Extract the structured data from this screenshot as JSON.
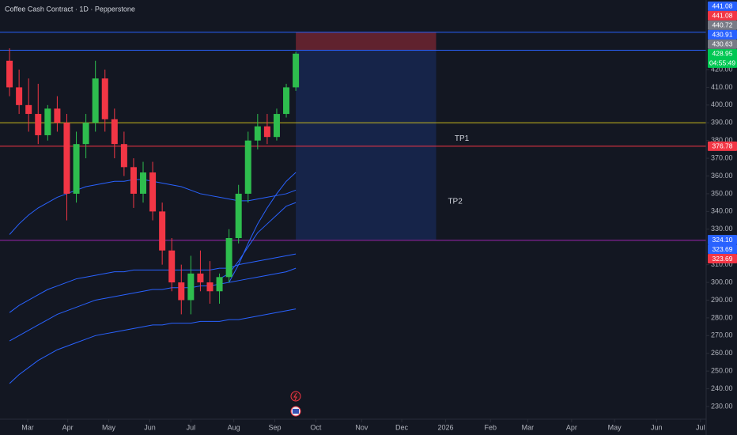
{
  "chart_data": {
    "type": "candlestick",
    "title": "Coffee Cash Contract · 1D · Pepperstone",
    "background": "#131722",
    "up_color": "#2ebd4e",
    "down_color": "#f23645",
    "grid": false,
    "x": [
      0,
      1,
      2,
      3,
      4,
      5,
      6,
      7,
      8,
      9,
      10,
      11,
      12,
      13,
      14,
      15,
      16,
      17,
      18,
      19,
      20,
      21,
      22,
      23,
      24,
      25,
      26,
      27,
      28,
      29,
      30
    ],
    "open": [
      425,
      410,
      400,
      395,
      383,
      398,
      390,
      350,
      378,
      390,
      415,
      392,
      378,
      365,
      350,
      362,
      340,
      318,
      300,
      290,
      305,
      300,
      295,
      303,
      325,
      350,
      380,
      388,
      382,
      395,
      410
    ],
    "high": [
      432,
      420,
      415,
      412,
      400,
      405,
      395,
      385,
      395,
      425,
      420,
      398,
      385,
      370,
      368,
      368,
      345,
      325,
      310,
      315,
      318,
      312,
      305,
      330,
      355,
      385,
      395,
      395,
      398,
      412,
      430
    ],
    "low": [
      405,
      395,
      385,
      378,
      380,
      385,
      335,
      345,
      370,
      385,
      385,
      370,
      360,
      342,
      345,
      335,
      310,
      295,
      282,
      282,
      295,
      288,
      288,
      300,
      322,
      345,
      375,
      378,
      380,
      393,
      408
    ],
    "close": [
      410,
      400,
      395,
      383,
      398,
      390,
      350,
      378,
      390,
      415,
      392,
      378,
      365,
      350,
      362,
      340,
      318,
      300,
      290,
      305,
      300,
      295,
      303,
      325,
      350,
      380,
      388,
      382,
      395,
      410,
      429
    ],
    "series": [
      {
        "color": "#2962ff",
        "values": [
          null,
          null,
          null,
          null,
          null,
          null,
          null,
          null,
          null,
          null,
          null,
          null,
          null,
          null,
          null,
          null,
          null,
          null,
          null,
          null,
          null,
          null,
          null,
          300,
          310,
          322,
          333,
          342,
          350,
          357,
          362
        ]
      },
      {
        "color": "#2962ff",
        "values": [
          null,
          null,
          null,
          null,
          null,
          null,
          null,
          null,
          null,
          null,
          null,
          null,
          null,
          null,
          null,
          null,
          null,
          null,
          null,
          null,
          null,
          null,
          302,
          305,
          312,
          320,
          328,
          333,
          338,
          343,
          345
        ]
      },
      {
        "color": "#2962ff",
        "values": [
          327,
          333,
          338,
          342,
          345,
          348,
          350,
          352,
          354,
          355,
          356,
          357,
          357,
          358,
          358,
          357,
          356,
          355,
          354,
          352,
          350,
          349,
          348,
          347,
          346,
          346,
          347,
          348,
          349,
          350,
          352
        ]
      },
      {
        "color": "#2962ff",
        "values": [
          283,
          287,
          290,
          293,
          296,
          298,
          300,
          302,
          303,
          304,
          305,
          306,
          306,
          307,
          307,
          307,
          307,
          307,
          307,
          307,
          307,
          307,
          308,
          308,
          310,
          311,
          312,
          313,
          314,
          315,
          316
        ]
      },
      {
        "color": "#2962ff",
        "values": [
          267,
          270,
          273,
          276,
          279,
          282,
          284,
          286,
          288,
          290,
          291,
          292,
          293,
          294,
          295,
          296,
          296,
          297,
          297,
          297,
          298,
          298,
          299,
          300,
          301,
          302,
          303,
          304,
          305,
          306,
          308
        ]
      },
      {
        "color": "#2962ff",
        "values": [
          243,
          248,
          252,
          256,
          259,
          262,
          264,
          266,
          268,
          270,
          271,
          272,
          273,
          274,
          275,
          276,
          276,
          277,
          277,
          277,
          278,
          278,
          278,
          279,
          279,
          280,
          281,
          282,
          283,
          284,
          285
        ]
      }
    ],
    "levels": [
      {
        "value": 441.08,
        "color": "#2962ff"
      },
      {
        "value": 430.91,
        "color": "#2962ff"
      },
      {
        "value": 390,
        "color": "#c9b91d"
      },
      {
        "value": 376.78,
        "color": "#f23645"
      },
      {
        "value": 323.69,
        "color": "#9c27b0"
      }
    ],
    "position": {
      "entry": 430.63,
      "stop": 441.08,
      "target": 324.1,
      "x": [
        30,
        44.7
      ]
    },
    "annotations": [
      {
        "text": "TP1",
        "x": 47.4,
        "y": 381
      },
      {
        "text": "TP2",
        "x": 46.7,
        "y": 345.5
      }
    ],
    "price_tags": [
      {
        "value": 441.08,
        "label": "441.08",
        "color": "#2962ff"
      },
      {
        "value": 441.08,
        "label": "441.08",
        "color": "#f23645"
      },
      {
        "value": 440.72,
        "label": "440.72",
        "color": "#787b86"
      },
      {
        "value": 430.91,
        "label": "430.91",
        "color": "#2962ff"
      },
      {
        "value": 430.63,
        "label": "430.63",
        "color": "#787b86"
      },
      {
        "value": 428.95,
        "label": "428.95",
        "color": "#00c853",
        "countdown": "04:55:49"
      },
      {
        "value": 376.78,
        "label": "376.78",
        "color": "#f23645"
      },
      {
        "value": 324.1,
        "label": "324.10",
        "color": "#2962ff"
      },
      {
        "value": 323.69,
        "label": "323.69",
        "color": "#2962ff"
      },
      {
        "value": 323.69,
        "label": "323.69",
        "color": "#f23645"
      }
    ],
    "xlim": [
      -1,
      73
    ],
    "ylim": [
      222.86,
      459.25
    ],
    "xticks": [
      {
        "value": 1.9,
        "label": "Mar"
      },
      {
        "value": 6.1,
        "label": "Apr"
      },
      {
        "value": 10.4,
        "label": "May"
      },
      {
        "value": 14.7,
        "label": "Jun"
      },
      {
        "value": 19,
        "label": "Jul"
      },
      {
        "value": 23.5,
        "label": "Aug"
      },
      {
        "value": 27.8,
        "label": "Sep"
      },
      {
        "value": 32.1,
        "label": "Oct"
      },
      {
        "value": 36.9,
        "label": "Nov"
      },
      {
        "value": 41.1,
        "label": "Dec"
      },
      {
        "value": 45.7,
        "label": "2026"
      },
      {
        "value": 50.4,
        "label": "Feb"
      },
      {
        "value": 54.3,
        "label": "Mar"
      },
      {
        "value": 58.9,
        "label": "Apr"
      },
      {
        "value": 63.4,
        "label": "May"
      },
      {
        "value": 67.8,
        "label": "Jun"
      },
      {
        "value": 72.4,
        "label": "Jul"
      }
    ],
    "yticks": [
      {
        "value": 420,
        "label": "420.00"
      },
      {
        "value": 410,
        "label": "410.00"
      },
      {
        "value": 400,
        "label": "400.00"
      },
      {
        "value": 390,
        "label": "390.00"
      },
      {
        "value": 380,
        "label": "380.00"
      },
      {
        "value": 370,
        "label": "370.00"
      },
      {
        "value": 360,
        "label": "360.00"
      },
      {
        "value": 350,
        "label": "350.00"
      },
      {
        "value": 340,
        "label": "340.00"
      },
      {
        "value": 330,
        "label": "330.00"
      },
      {
        "value": 310,
        "label": "310.00"
      },
      {
        "value": 300,
        "label": "300.00"
      },
      {
        "value": 290,
        "label": "290.00"
      },
      {
        "value": 280,
        "label": "280.00"
      },
      {
        "value": 270,
        "label": "270.00"
      },
      {
        "value": 260,
        "label": "260.00"
      },
      {
        "value": 250,
        "label": "250.00"
      },
      {
        "value": 240,
        "label": "240.00"
      },
      {
        "value": 230,
        "label": "230.00"
      }
    ]
  }
}
